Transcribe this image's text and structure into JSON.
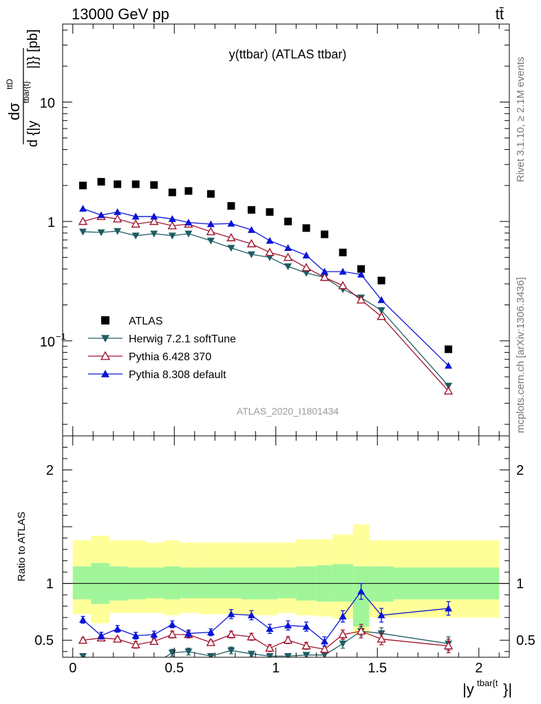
{
  "header": {
    "left": "13000 GeV pp",
    "right": "tt̄"
  },
  "side_labels": {
    "rivet": "Rivet 3.1.10, ≥ 2.1M events",
    "mcplots": "mcplots.cern.ch [arXiv:1306.3436]"
  },
  "colors": {
    "atlas": "#000000",
    "herwig": "#1f5c63",
    "pythia6": "#a0142e",
    "pythia8": "#0a14d6",
    "band_inner": "#a0f59a",
    "band_outer": "#ffff99"
  },
  "chart_data": [
    {
      "type": "scatter",
      "title": "y(ttbar) (ATLAS ttbar)",
      "ylabel_num": "dσ",
      "ylabel_num_sup": "ttD",
      "ylabel_den": "d {|y",
      "ylabel_den_sup": "tbar{t}",
      "ylabel_den_close": "|}} [pb]",
      "ylabel_sub": "",
      "yscale": "log",
      "ylim": [
        0.016,
        45
      ],
      "xlim": [
        -0.05,
        2.15
      ],
      "yticks": [
        {
          "v": 0.1,
          "label": "10",
          "sup": "−1"
        },
        {
          "v": 1,
          "label": "1",
          "sup": ""
        },
        {
          "v": 10,
          "label": "10",
          "sup": ""
        }
      ],
      "watermark": "ATLAS_2020_I1801434",
      "legend_position": "bottom-left",
      "series": [
        {
          "name": "ATLAS",
          "marker": "square",
          "x": [
            0.05,
            0.14,
            0.22,
            0.31,
            0.4,
            0.49,
            0.57,
            0.68,
            0.78,
            0.88,
            0.97,
            1.06,
            1.15,
            1.24,
            1.33,
            1.42,
            1.52,
            1.85
          ],
          "y": [
            2.0,
            2.15,
            2.05,
            2.05,
            2.02,
            1.75,
            1.8,
            1.7,
            1.35,
            1.25,
            1.2,
            1.0,
            0.88,
            0.78,
            0.55,
            0.4,
            0.32,
            0.085
          ]
        },
        {
          "name": "Herwig 7.2.1 softTune",
          "marker": "triangle-down",
          "x": [
            0.05,
            0.14,
            0.22,
            0.31,
            0.4,
            0.49,
            0.57,
            0.68,
            0.78,
            0.88,
            0.97,
            1.06,
            1.15,
            1.24,
            1.33,
            1.42,
            1.52,
            1.85
          ],
          "y": [
            0.82,
            0.81,
            0.83,
            0.76,
            0.79,
            0.76,
            0.79,
            0.69,
            0.6,
            0.53,
            0.5,
            0.42,
            0.37,
            0.34,
            0.27,
            0.23,
            0.18,
            0.042
          ]
        },
        {
          "name": "Pythia 6.428 370",
          "marker": "triangle-up-open",
          "x": [
            0.05,
            0.14,
            0.22,
            0.31,
            0.4,
            0.49,
            0.57,
            0.68,
            0.78,
            0.88,
            0.97,
            1.06,
            1.15,
            1.24,
            1.33,
            1.42,
            1.52,
            1.85
          ],
          "y": [
            1.0,
            1.1,
            1.05,
            0.95,
            1.0,
            0.92,
            0.95,
            0.82,
            0.73,
            0.65,
            0.55,
            0.5,
            0.41,
            0.34,
            0.29,
            0.22,
            0.16,
            0.038
          ]
        },
        {
          "name": "Pythia 8.308 default",
          "marker": "triangle-up",
          "x": [
            0.05,
            0.14,
            0.22,
            0.31,
            0.4,
            0.49,
            0.57,
            0.68,
            0.78,
            0.88,
            0.97,
            1.06,
            1.15,
            1.24,
            1.33,
            1.42,
            1.52,
            1.85
          ],
          "y": [
            1.28,
            1.13,
            1.2,
            1.1,
            1.1,
            1.05,
            0.98,
            0.95,
            0.96,
            0.85,
            0.69,
            0.6,
            0.52,
            0.38,
            0.38,
            0.36,
            0.22,
            0.062
          ]
        }
      ]
    },
    {
      "type": "line",
      "ylabel": "Ratio to ATLAS",
      "ylim": [
        0.35,
        2.3
      ],
      "xlim": [
        -0.05,
        2.15
      ],
      "yticks": [
        {
          "v": 0.5,
          "label": "0.5"
        },
        {
          "v": 1,
          "label": "1"
        },
        {
          "v": 2,
          "label": "2"
        }
      ],
      "xticks": [
        {
          "v": 0,
          "label": "0"
        },
        {
          "v": 0.5,
          "label": "0.5"
        },
        {
          "v": 1,
          "label": "1"
        },
        {
          "v": 1.5,
          "label": "1.5"
        },
        {
          "v": 2,
          "label": "2"
        }
      ],
      "xlabel": "|y",
      "xlabel_sup": "tbar{t",
      "xlabel_close": "}|",
      "bands": {
        "edges": [
          0,
          0.09,
          0.18,
          0.27,
          0.36,
          0.45,
          0.53,
          0.62,
          0.73,
          0.83,
          0.93,
          1.01,
          1.1,
          1.2,
          1.28,
          1.38,
          1.46,
          1.58,
          2.1
        ],
        "inner": [
          [
            0.86,
            1.15
          ],
          [
            0.82,
            1.18
          ],
          [
            0.85,
            1.15
          ],
          [
            0.86,
            1.14
          ],
          [
            0.87,
            1.14
          ],
          [
            0.86,
            1.15
          ],
          [
            0.87,
            1.14
          ],
          [
            0.87,
            1.14
          ],
          [
            0.87,
            1.14
          ],
          [
            0.86,
            1.14
          ],
          [
            0.86,
            1.14
          ],
          [
            0.87,
            1.14
          ],
          [
            0.85,
            1.15
          ],
          [
            0.84,
            1.16
          ],
          [
            0.84,
            1.17
          ],
          [
            0.62,
            1.15
          ],
          [
            0.84,
            1.15
          ],
          [
            0.86,
            1.14
          ]
        ],
        "outer": [
          [
            0.73,
            1.38
          ],
          [
            0.65,
            1.42
          ],
          [
            0.74,
            1.38
          ],
          [
            0.74,
            1.38
          ],
          [
            0.74,
            1.36
          ],
          [
            0.72,
            1.38
          ],
          [
            0.74,
            1.36
          ],
          [
            0.73,
            1.36
          ],
          [
            0.73,
            1.36
          ],
          [
            0.72,
            1.36
          ],
          [
            0.72,
            1.36
          ],
          [
            0.74,
            1.36
          ],
          [
            0.72,
            1.39
          ],
          [
            0.71,
            1.39
          ],
          [
            0.69,
            1.43
          ],
          [
            0.55,
            1.52
          ],
          [
            0.7,
            1.38
          ],
          [
            0.7,
            1.38
          ]
        ]
      },
      "series": [
        {
          "name": "Herwig 7.2.1 softTune",
          "x": [
            0.05,
            0.14,
            0.22,
            0.31,
            0.4,
            0.49,
            0.57,
            0.68,
            0.78,
            0.88,
            0.97,
            1.06,
            1.15,
            1.24,
            1.33,
            1.42,
            1.52,
            1.85
          ],
          "y": [
            0.36,
            0.3,
            0.31,
            0.3,
            0.29,
            0.39,
            0.4,
            0.36,
            0.41,
            0.38,
            0.36,
            0.36,
            0.37,
            0.37,
            0.47,
            0.58,
            0.56,
            0.47
          ],
          "err": [
            0.02,
            0.02,
            0.02,
            0.02,
            0.02,
            0.03,
            0.03,
            0.02,
            0.03,
            0.02,
            0.02,
            0.02,
            0.02,
            0.03,
            0.04,
            0.04,
            0.05,
            0.06
          ]
        },
        {
          "name": "Pythia 6.428 370",
          "x": [
            0.05,
            0.14,
            0.22,
            0.31,
            0.4,
            0.49,
            0.57,
            0.68,
            0.78,
            0.88,
            0.97,
            1.06,
            1.15,
            1.24,
            1.33,
            1.42,
            1.52,
            1.85
          ],
          "y": [
            0.5,
            0.52,
            0.51,
            0.46,
            0.49,
            0.55,
            0.55,
            0.48,
            0.55,
            0.53,
            0.43,
            0.5,
            0.45,
            0.42,
            0.55,
            0.58,
            0.51,
            0.45
          ],
          "err": [
            0.02,
            0.02,
            0.02,
            0.03,
            0.02,
            0.03,
            0.03,
            0.02,
            0.03,
            0.03,
            0.03,
            0.03,
            0.03,
            0.03,
            0.04,
            0.06,
            0.05,
            0.06
          ]
        },
        {
          "name": "Pythia 8.308 default",
          "x": [
            0.05,
            0.14,
            0.22,
            0.31,
            0.4,
            0.49,
            0.57,
            0.68,
            0.78,
            0.88,
            0.97,
            1.06,
            1.15,
            1.24,
            1.33,
            1.42,
            1.52,
            1.85
          ],
          "y": [
            0.68,
            0.54,
            0.6,
            0.54,
            0.55,
            0.64,
            0.56,
            0.57,
            0.73,
            0.72,
            0.6,
            0.63,
            0.62,
            0.49,
            0.71,
            0.93,
            0.72,
            0.78
          ],
          "err": [
            0.03,
            0.03,
            0.03,
            0.03,
            0.03,
            0.03,
            0.03,
            0.03,
            0.04,
            0.04,
            0.04,
            0.04,
            0.04,
            0.04,
            0.05,
            0.07,
            0.06,
            0.06
          ]
        }
      ]
    }
  ]
}
